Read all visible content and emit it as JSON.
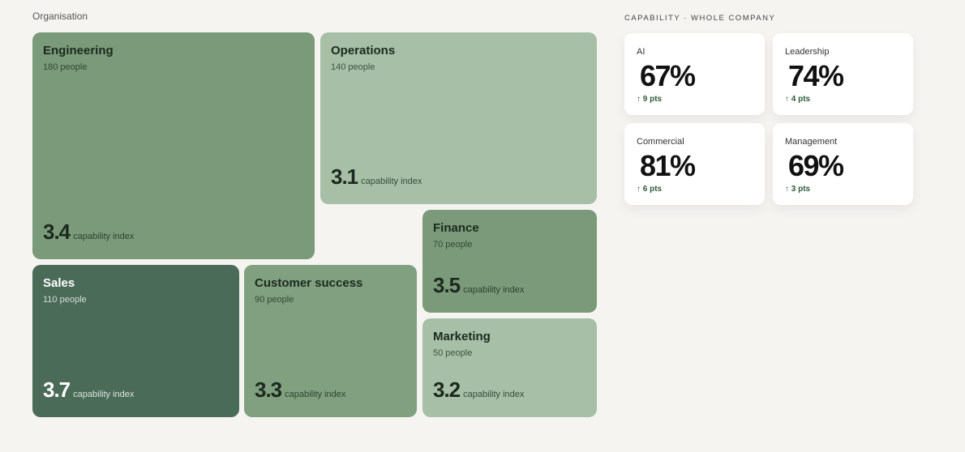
{
  "header": {
    "subtitle": "Organisation"
  },
  "tiles": [
    {
      "name": "Engineering",
      "people": "180 people",
      "index": "3.4",
      "index_label": "capability index"
    },
    {
      "name": "Operations",
      "people": "140 people",
      "index": "3.1",
      "index_label": "capability index"
    },
    {
      "name": "Finance",
      "people": "70 people",
      "index": "3.5",
      "index_label": "capability index"
    },
    {
      "name": "Marketing",
      "people": "50 people",
      "index": "3.2",
      "index_label": "capability index"
    },
    {
      "name": "Sales",
      "people": "110 people",
      "index": "3.7",
      "index_label": "capability index"
    },
    {
      "name": "Customer success",
      "people": "90 people",
      "index": "3.3",
      "index_label": "capability index"
    }
  ],
  "capability": {
    "title": "CAPABILITY · WHOLE COMPANY",
    "cards": [
      {
        "label": "AI",
        "value": "67%",
        "delta": "↑ 9 pts"
      },
      {
        "label": "Leadership",
        "value": "74%",
        "delta": "↑ 4 pts"
      },
      {
        "label": "Commercial",
        "value": "81%",
        "delta": "↑ 6 pts"
      },
      {
        "label": "Management",
        "value": "69%",
        "delta": "↑ 3 pts"
      }
    ]
  }
}
